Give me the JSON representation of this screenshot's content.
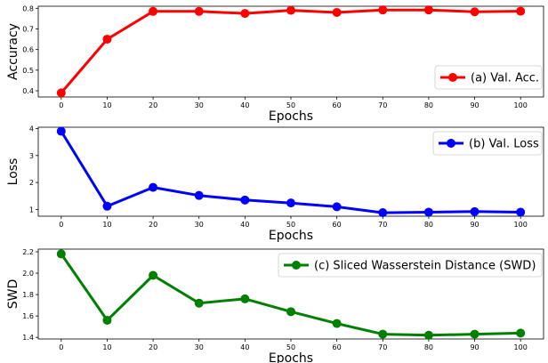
{
  "chart_data": [
    {
      "type": "line",
      "x": [
        0,
        10,
        20,
        30,
        40,
        50,
        60,
        70,
        80,
        90,
        100
      ],
      "series": [
        {
          "name": "(a) Val. Acc.",
          "color": "#ff0000",
          "values": [
            0.39,
            0.65,
            0.785,
            0.785,
            0.775,
            0.79,
            0.78,
            0.792,
            0.792,
            0.783,
            0.786
          ]
        }
      ],
      "xlabel": "Epochs",
      "ylabel": "Accuracy",
      "xticks": [
        "0",
        "10",
        "20",
        "30",
        "40",
        "50",
        "60",
        "70",
        "80",
        "90",
        "100"
      ],
      "yticks": [
        "0.4",
        "0.5",
        "0.6",
        "0.7",
        "0.8"
      ],
      "xlim": [
        -5,
        105
      ],
      "ylim": [
        0.37,
        0.81
      ],
      "grid": false,
      "legend_position": "right"
    },
    {
      "type": "line",
      "x": [
        0,
        10,
        20,
        30,
        40,
        50,
        60,
        70,
        80,
        90,
        100
      ],
      "series": [
        {
          "name": "(b) Val. Loss",
          "color": "#0000ff",
          "values": [
            3.9,
            1.12,
            1.82,
            1.52,
            1.35,
            1.24,
            1.1,
            0.88,
            0.9,
            0.92,
            0.9
          ]
        }
      ],
      "xlabel": "Epochs",
      "ylabel": "Loss",
      "xticks": [
        "0",
        "10",
        "20",
        "30",
        "40",
        "50",
        "60",
        "70",
        "80",
        "90",
        "100"
      ],
      "yticks": [
        "1",
        "2",
        "3",
        "4"
      ],
      "xlim": [
        -5,
        105
      ],
      "ylim": [
        0.75,
        4.05
      ],
      "grid": false,
      "legend_position": "top-right"
    },
    {
      "type": "line",
      "x": [
        0,
        10,
        20,
        30,
        40,
        50,
        60,
        70,
        80,
        90,
        100
      ],
      "series": [
        {
          "name": "(c) Sliced Wasserstein Distance (SWD)",
          "color": "#008000",
          "values": [
            2.18,
            1.56,
            1.98,
            1.72,
            1.76,
            1.64,
            1.53,
            1.43,
            1.42,
            1.43,
            1.44
          ]
        }
      ],
      "xlabel": "Epochs",
      "ylabel": "SWD",
      "xticks": [
        "0",
        "10",
        "20",
        "30",
        "40",
        "50",
        "60",
        "70",
        "80",
        "90",
        "100"
      ],
      "yticks": [
        "1.4",
        "1.6",
        "1.8",
        "2.0",
        "2.2"
      ],
      "xlim": [
        -5,
        105
      ],
      "ylim": [
        1.385,
        2.225
      ],
      "grid": false,
      "legend_position": "top-right"
    }
  ]
}
